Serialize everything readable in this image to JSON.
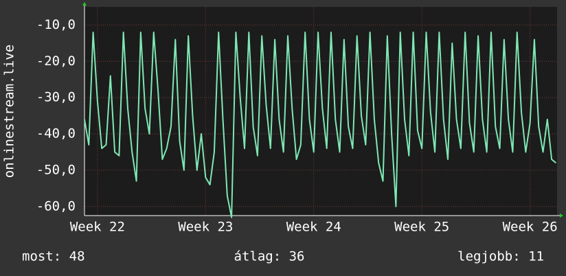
{
  "chart_data": {
    "type": "line",
    "y_label": "onlinestream.live",
    "x": [
      21.88,
      21.92,
      21.96,
      22.0,
      22.04,
      22.08,
      22.12,
      22.16,
      22.2,
      22.24,
      22.28,
      22.32,
      22.36,
      22.4,
      22.44,
      22.48,
      22.52,
      22.56,
      22.6,
      22.64,
      22.68,
      22.72,
      22.76,
      22.8,
      22.84,
      22.88,
      22.92,
      22.96,
      23.0,
      23.04,
      23.08,
      23.12,
      23.16,
      23.2,
      23.24,
      23.28,
      23.32,
      23.36,
      23.4,
      23.44,
      23.48,
      23.52,
      23.56,
      23.6,
      23.64,
      23.68,
      23.72,
      23.76,
      23.8,
      23.84,
      23.88,
      23.92,
      23.96,
      24.0,
      24.04,
      24.08,
      24.12,
      24.16,
      24.2,
      24.24,
      24.28,
      24.32,
      24.36,
      24.4,
      24.44,
      24.48,
      24.52,
      24.56,
      24.6,
      24.64,
      24.68,
      24.72,
      24.76,
      24.8,
      24.84,
      24.88,
      24.92,
      24.96,
      25.0,
      25.04,
      25.08,
      25.12,
      25.16,
      25.2,
      25.24,
      25.28,
      25.32,
      25.36,
      25.4,
      25.44,
      25.48,
      25.52,
      25.56,
      25.6,
      25.64,
      25.68,
      25.72,
      25.76,
      25.8,
      25.84,
      25.88,
      25.92,
      25.96,
      26.0,
      26.04,
      26.08,
      26.12,
      26.16,
      26.2,
      26.24
    ],
    "series": [
      {
        "name": "onlinestream.live",
        "color": "#7ee8b4",
        "values": [
          -36,
          -43,
          -12,
          -31,
          -44,
          -43,
          -24,
          -45,
          -46,
          -12,
          -33,
          -45,
          -53,
          -12,
          -33,
          -40,
          -12,
          -28,
          -47,
          -44,
          -38,
          -14,
          -42,
          -50,
          -13,
          -35,
          -50,
          -40,
          -52,
          -54,
          -45,
          -12,
          -36,
          -57,
          -63,
          -12,
          -30,
          -44,
          -12,
          -38,
          -46,
          -13,
          -32,
          -44,
          -14,
          -36,
          -45,
          -13,
          -33,
          -47,
          -43,
          -12,
          -36,
          -45,
          -12,
          -33,
          -44,
          -12,
          -36,
          -45,
          -14,
          -38,
          -44,
          -13,
          -35,
          -43,
          -12,
          -36,
          -48,
          -53,
          -13,
          -40,
          -60,
          -12,
          -36,
          -46,
          -12,
          -39,
          -44,
          -12,
          -34,
          -45,
          -12,
          -36,
          -47,
          -15,
          -36,
          -44,
          -12,
          -37,
          -45,
          -13,
          -36,
          -45,
          -12,
          -38,
          -44,
          -14,
          -36,
          -45,
          -12,
          -34,
          -45,
          -37,
          -14,
          -38,
          -45,
          -36,
          -47,
          -48
        ]
      }
    ],
    "xlim": [
      21.88,
      26.25
    ],
    "xticks": [
      {
        "value": 22,
        "label": "Week 22"
      },
      {
        "value": 23,
        "label": "Week 23"
      },
      {
        "value": 24,
        "label": "Week 24"
      },
      {
        "value": 25,
        "label": "Week 25"
      },
      {
        "value": 26,
        "label": "Week 26"
      }
    ],
    "ylim": [
      -62.5,
      -5
    ],
    "yticks": [
      {
        "value": -60,
        "label": "-60,0"
      },
      {
        "value": -50,
        "label": "-50,0"
      },
      {
        "value": -40,
        "label": "-40,0"
      },
      {
        "value": -30,
        "label": "-30,0"
      },
      {
        "value": -20,
        "label": "-20,0"
      },
      {
        "value": -10,
        "label": "-10,0"
      }
    ],
    "grid": true,
    "footer": [
      "most: 48",
      "átlag: 36",
      "legjobb: 11"
    ]
  }
}
